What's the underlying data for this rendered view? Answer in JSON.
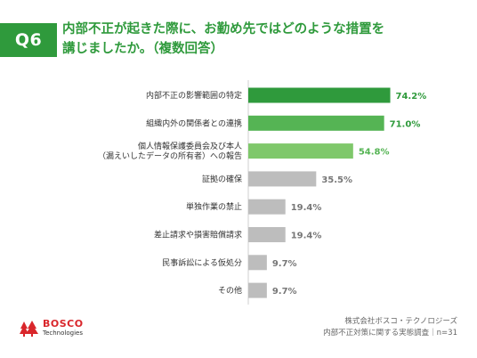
{
  "header": {
    "badge": "Q6",
    "title_line1": "内部不正が起きた際に、お勤め先ではどのような措置を",
    "title_line2": "講じましたか。（複数回答）"
  },
  "chart_data": {
    "type": "bar",
    "orientation": "horizontal",
    "categories": [
      [
        "内部不正の影響範囲の特定"
      ],
      [
        "組織内外の関係者との連携"
      ],
      [
        "個人情報保護委員会及び本人",
        "（漏えいしたデータの所有者）への報告"
      ],
      [
        "証拠の確保"
      ],
      [
        "単独作業の禁止"
      ],
      [
        "差止請求や損害賠償請求"
      ],
      [
        "民事訴訟による仮処分"
      ],
      [
        "その他"
      ]
    ],
    "values": [
      74.2,
      71.0,
      54.8,
      35.5,
      19.4,
      19.4,
      9.7,
      9.7
    ],
    "value_labels": [
      "74.2%",
      "71.0%",
      "54.8%",
      "35.5%",
      "19.4%",
      "19.4%",
      "9.7%",
      "9.7%"
    ],
    "bar_colors": [
      "#2f9a3c",
      "#55b454",
      "#7fc86b",
      "#bdbdbd",
      "#bdbdbd",
      "#bdbdbd",
      "#bdbdbd",
      "#bdbdbd"
    ],
    "label_colors": [
      "#2f9a3c",
      "#2f9a3c",
      "#55b454",
      "#777777",
      "#777777",
      "#777777",
      "#777777",
      "#777777"
    ],
    "xlim": [
      0,
      100
    ],
    "grid": false
  },
  "footer": {
    "company": "株式会社ボスコ・テクノロジーズ",
    "survey": "内部不正対策に関する実態調査｜n=31"
  },
  "logo": {
    "name": "BOSCO",
    "sub": "Technologies",
    "color": "#d9262b"
  }
}
